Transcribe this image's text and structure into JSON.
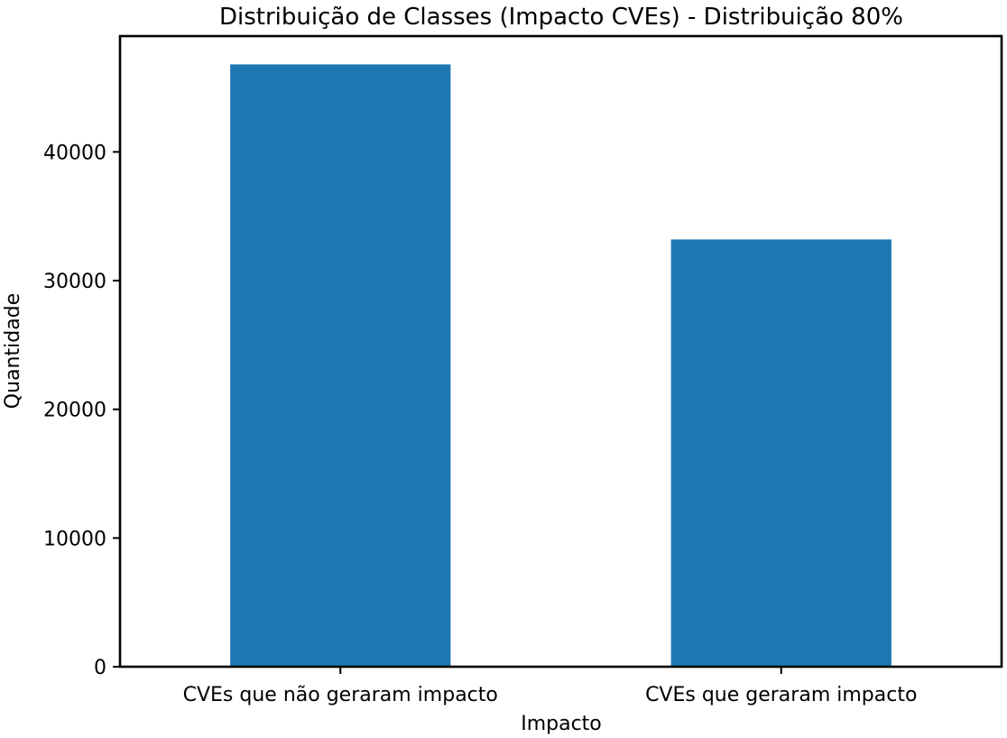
{
  "chart_data": {
    "type": "bar",
    "title": "Distribuição de Classes (Impacto CVEs) - Distribuição 80%",
    "xlabel": "Impacto",
    "ylabel": "Quantidade",
    "categories": [
      "CVEs que não geraram impacto",
      "CVEs que geraram impacto"
    ],
    "values": [
      46800,
      33200
    ],
    "ylim": [
      0,
      49000
    ],
    "yticks": [
      0,
      10000,
      20000,
      30000,
      40000
    ],
    "ytick_labels": [
      "0",
      "10000",
      "20000",
      "30000",
      "40000"
    ],
    "bar_color": "#1f77b4",
    "grid": false,
    "legend": "none"
  }
}
